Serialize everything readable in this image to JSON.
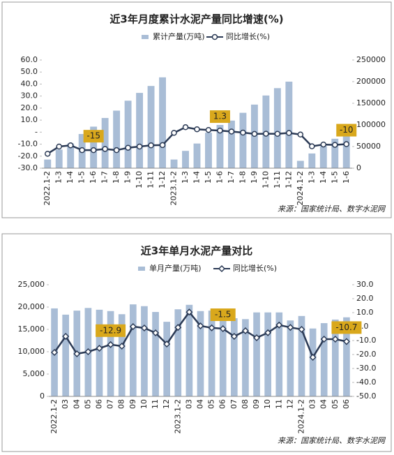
{
  "chart_data": [
    {
      "type": "bar_line",
      "title": "近3年月度累计水泥产量同比增速(%)",
      "source": "来源：国家统计局、数字水泥网",
      "marker": "circle",
      "categories": [
        "2022.1-2",
        "1-3",
        "1-4",
        "1-5",
        "1-6",
        "1-7",
        "1-8",
        "1-9",
        "1-10",
        "1-11",
        "1-12",
        "2023.1-2",
        "1-3",
        "1-4",
        "1-5",
        "1-6",
        "1-7",
        "1-8",
        "1-9",
        "1-10",
        "1-11",
        "1-12",
        "2024.1-2",
        "1-3",
        "1-4",
        "1-5",
        "1-6"
      ],
      "series": [
        {
          "name": "累计产量(万吨)",
          "type": "bar",
          "axis": "y2",
          "color": "#a9bdd6",
          "values": [
            20000,
            43000,
            57000,
            79000,
            96000,
            116000,
            133000,
            156000,
            174000,
            190000,
            210000,
            20000,
            40000,
            57000,
            82000,
            100000,
            110000,
            128000,
            147000,
            168000,
            185000,
            200000,
            17000,
            34000,
            51000,
            68000,
            86000
          ]
        },
        {
          "name": "同比增长(%)",
          "type": "line",
          "axis": "y",
          "color": "#2b3a55",
          "values": [
            -18,
            -12,
            -11,
            -15,
            -15,
            -14,
            -15,
            -13,
            -12,
            -11,
            -10.8,
            -0.6,
            4.1,
            2.4,
            1.8,
            1.3,
            0.5,
            -0.4,
            -1.5,
            -1.3,
            -1.4,
            -0.7,
            -2,
            -11.8,
            -10.3,
            -10.6,
            -10
          ],
          "value_labels": [
            null,
            null,
            null,
            null,
            "-15",
            null,
            null,
            null,
            null,
            null,
            null,
            null,
            null,
            null,
            null,
            "1.3",
            null,
            null,
            null,
            null,
            null,
            null,
            null,
            null,
            null,
            null,
            "-10"
          ]
        }
      ],
      "ylim": [
        -30,
        60
      ],
      "yticks": [
        {
          "value": -30,
          "label": "-30.0"
        },
        {
          "value": -20,
          "label": "-20.0"
        },
        {
          "value": -10,
          "label": "-10.0"
        },
        {
          "value": 0,
          "label": "-"
        },
        {
          "value": 10,
          "label": "10.0"
        },
        {
          "value": 20,
          "label": "20.0"
        },
        {
          "value": 30,
          "label": "30.0"
        },
        {
          "value": 40,
          "label": "40.0"
        },
        {
          "value": 50,
          "label": "50.0"
        },
        {
          "value": 60,
          "label": "60.0"
        }
      ],
      "y2lim": [
        0,
        250000
      ],
      "y2ticks": [
        0,
        50000,
        100000,
        150000,
        200000,
        250000
      ]
    },
    {
      "type": "bar_line",
      "title": "近3年单月水泥产量对比",
      "source": "来源：国家统计局、数字水泥网",
      "marker": "diamond",
      "categories": [
        "2022.1-2",
        "03",
        "04",
        "05",
        "06",
        "07",
        "08",
        "09",
        "10",
        "11",
        "12",
        "2023.1-2",
        "03",
        "04",
        "05",
        "06",
        "07",
        "08",
        "09",
        "10",
        "11",
        "12",
        "2024.1-2",
        "03",
        "04",
        "05",
        "06"
      ],
      "series": [
        {
          "name": "单月产量(万吨)",
          "type": "bar",
          "axis": "y",
          "color": "#a9bdd6",
          "values": [
            19700,
            18300,
            19200,
            19800,
            19400,
            19100,
            18400,
            20600,
            20200,
            18900,
            16700,
            19500,
            20500,
            19100,
            19200,
            18400,
            17500,
            17300,
            18800,
            18800,
            18800,
            17000,
            18000,
            15200,
            16400,
            17200,
            17700
          ]
        },
        {
          "name": "同比增长(%)",
          "type": "line",
          "axis": "y2",
          "color": "#2b3a55",
          "values": [
            -18.5,
            -7,
            -19.5,
            -18,
            -15.5,
            -12.9,
            -14,
            0,
            -1,
            -4.5,
            -12.5,
            -0.6,
            10.4,
            0.5,
            -0.9,
            -1.5,
            -7,
            -3,
            -8,
            -4.4,
            1.1,
            -0.6,
            -2,
            -22,
            -9,
            -9,
            -10.7
          ],
          "value_labels": [
            null,
            null,
            null,
            null,
            null,
            "-12.9",
            null,
            null,
            null,
            null,
            null,
            null,
            null,
            null,
            null,
            "-1.5",
            null,
            null,
            null,
            null,
            null,
            null,
            null,
            null,
            null,
            null,
            "-10.7"
          ]
        }
      ],
      "ylim": [
        0,
        25000
      ],
      "yticks": [
        0,
        {
          "value": 5000,
          "label": "5,000"
        },
        {
          "value": 10000,
          "label": "10,000"
        },
        {
          "value": 15000,
          "label": "15,000"
        },
        {
          "value": 20000,
          "label": "20,000"
        },
        {
          "value": 25000,
          "label": "25,000"
        }
      ],
      "y2lim": [
        -50,
        30
      ],
      "y2ticks": [
        {
          "value": -50,
          "label": "-50.0"
        },
        {
          "value": -40,
          "label": "-40.0"
        },
        {
          "value": -30,
          "label": "-30.0"
        },
        {
          "value": -20,
          "label": "-20.0"
        },
        {
          "value": -10,
          "label": "-10.0"
        },
        {
          "value": 0,
          "label": "0.0"
        },
        {
          "value": 10,
          "label": "10.0"
        },
        {
          "value": 20,
          "label": "20.0"
        },
        {
          "value": 30,
          "label": "30.0"
        }
      ]
    }
  ]
}
